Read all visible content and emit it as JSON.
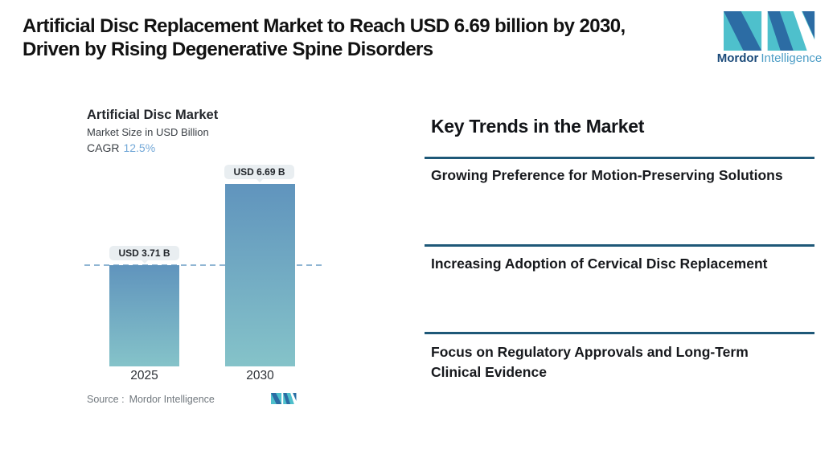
{
  "page": {
    "title_line1": "Artificial Disc Replacement Market to Reach USD 6.69 billion by 2030,",
    "title_line2": "Driven by Rising Degenerative Spine Disorders"
  },
  "brand": {
    "name_primary": "Mordor",
    "name_secondary": "Intelligence"
  },
  "chart": {
    "title": "Artificial Disc Market",
    "subtitle": "Market Size in USD Billion",
    "cagr_label": "CAGR",
    "cagr_value": "12.5%",
    "source_label": "Source :",
    "source_name": "Mordor Intelligence",
    "bars": [
      {
        "year": "2025",
        "value_label": "USD 3.71 B"
      },
      {
        "year": "2030",
        "value_label": "USD 6.69 B"
      }
    ]
  },
  "chart_data": {
    "type": "bar",
    "title": "Artificial Disc Market",
    "ylabel": "Market Size in USD Billion",
    "xlabel": "",
    "categories": [
      "2025",
      "2030"
    ],
    "values": [
      3.71,
      6.69
    ],
    "data_labels": [
      "USD 3.71 B",
      "USD 6.69 B"
    ],
    "cagr_percent": 12.5,
    "ylim": [
      0,
      7
    ],
    "grid": false,
    "legend": false,
    "annotations": [
      "dashed horizontal reference line at the 2025 level (3.71)"
    ],
    "bar_gradient_top": "#6094BD",
    "bar_gradient_bottom": "#85C3C9"
  },
  "trends": {
    "heading": "Key Trends in the Market",
    "items": [
      "Growing Preference for Motion-Preserving Solutions",
      "Increasing Adoption of Cervical Disc Replacement",
      "Focus on Regulatory Approvals and Long-Term Clinical Evidence"
    ]
  },
  "colors": {
    "logo_teal": "#4EC0CC",
    "logo_blue": "#2C6CA4",
    "brand_text_dark": "#1B4A7A",
    "brand_text_light": "#4C9DC6",
    "cagr_value_color": "#74A9D8",
    "divider_color": "#1E5878",
    "dashline_color": "#8FB5D3",
    "pill_background": "#E9EEF1"
  }
}
